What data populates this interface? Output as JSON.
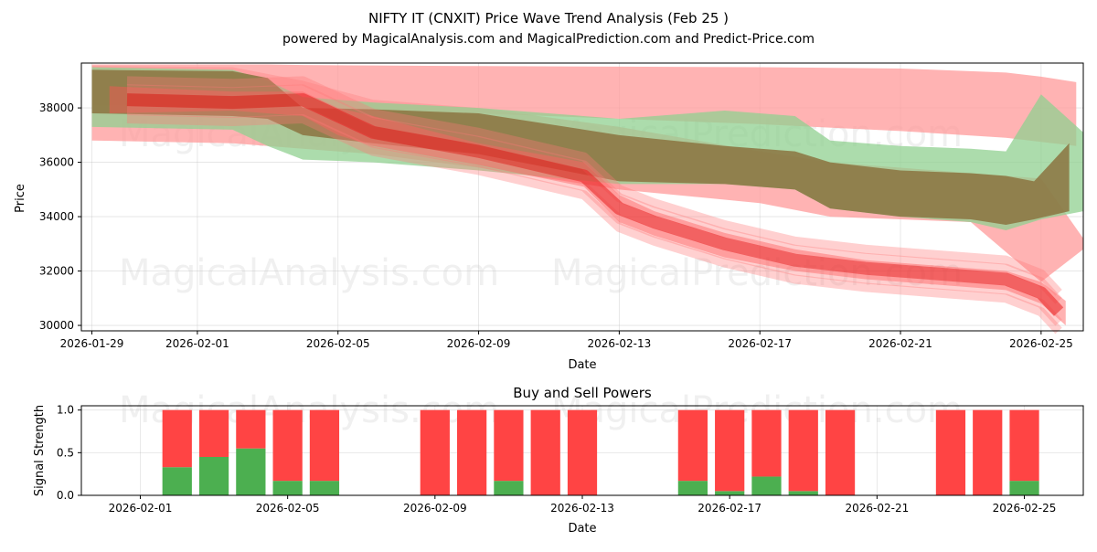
{
  "chart_data": [
    {
      "type": "area",
      "title": "NIFTY IT (CNXIT) Price Wave Trend Analysis (Feb 25 )",
      "subtitle": "powered by MagicalAnalysis.com and MagicalPrediction.com and Predict-Price.com",
      "xlabel": "Date",
      "ylabel": "Price",
      "x_ticks": [
        "2026-01-29",
        "2026-02-01",
        "2026-02-05",
        "2026-02-09",
        "2026-02-13",
        "2026-02-17",
        "2026-02-21",
        "2026-02-25"
      ],
      "x_tick_days": [
        -3,
        0,
        4,
        8,
        12,
        16,
        20,
        24
      ],
      "xlim": [
        -3.3,
        25.2
      ],
      "y_ticks": [
        30000,
        32000,
        34000,
        36000,
        38000
      ],
      "y_tick_labels": [
        "30000",
        "32000",
        "34000",
        "36000",
        "38000"
      ],
      "ylim": [
        29800,
        39650
      ],
      "watermarks": [
        "MagicalAnalysis.com",
        "MagicalPrediction.com",
        "MagicalAnalysis.com",
        "MagicalPrediction.com"
      ],
      "series": [
        {
          "name": "band-red-upper",
          "color": "#ff9999",
          "x": [
            -3,
            1,
            2,
            3,
            5,
            8,
            12,
            16,
            20,
            23,
            24,
            25
          ],
          "upper": [
            39600,
            39600,
            39600,
            39580,
            39560,
            39540,
            39520,
            39500,
            39450,
            39300,
            39150,
            38950
          ],
          "lower": [
            38100,
            38000,
            37980,
            37950,
            37900,
            37800,
            37600,
            37400,
            37150,
            36900,
            36750,
            36600
          ]
        },
        {
          "name": "band-red-lower",
          "color": "#ff9999",
          "x": [
            -3,
            1,
            3,
            5,
            8,
            12,
            16,
            18,
            20,
            22,
            24,
            25.2
          ],
          "upper": [
            39550,
            39500,
            39000,
            38300,
            38000,
            37300,
            36400,
            36000,
            35800,
            35600,
            35400,
            33200
          ],
          "lower": [
            36800,
            36700,
            36500,
            36300,
            35800,
            35000,
            34500,
            34000,
            33900,
            33800,
            31600,
            32800
          ]
        },
        {
          "name": "band-green",
          "color": "#90d090",
          "x": [
            -3,
            1,
            2,
            3,
            5,
            8,
            12,
            15,
            17,
            18,
            20,
            22,
            23,
            24,
            25.2
          ],
          "upper": [
            39500,
            39400,
            39000,
            38400,
            38200,
            38000,
            37600,
            37900,
            37700,
            36800,
            36600,
            36500,
            36400,
            38500,
            37100
          ],
          "lower": [
            37300,
            37200,
            36600,
            36100,
            36000,
            35700,
            35200,
            35200,
            35000,
            34300,
            34000,
            33800,
            33500,
            33900,
            34200
          ]
        },
        {
          "name": "band-olive",
          "color": "#8b7340",
          "x": [
            -3,
            1,
            2,
            3,
            5,
            8,
            12,
            15,
            17,
            18,
            20,
            22,
            23,
            23.8,
            24.8
          ],
          "upper": [
            39400,
            39350,
            39100,
            38000,
            37950,
            37800,
            37000,
            36600,
            36400,
            36000,
            35700,
            35600,
            35500,
            35300,
            36700
          ],
          "lower": [
            37800,
            37700,
            37600,
            37000,
            36700,
            36300,
            35300,
            35200,
            35000,
            34300,
            34000,
            33900,
            33700,
            33900,
            34200
          ]
        },
        {
          "name": "band-red-wave",
          "color": "#ff5555",
          "x": [
            -2.5,
            1,
            3,
            4,
            5,
            8,
            11,
            12,
            13,
            15,
            17,
            19,
            21,
            23,
            24,
            24.7
          ],
          "upper": [
            38800,
            38600,
            38600,
            38000,
            37700,
            36700,
            36000,
            34800,
            34200,
            33400,
            32800,
            32400,
            32200,
            32000,
            31600,
            30900
          ],
          "lower": [
            37800,
            37900,
            37700,
            37000,
            36600,
            35900,
            35100,
            33800,
            33300,
            32500,
            32000,
            31700,
            31500,
            31300,
            30800,
            30000
          ]
        }
      ],
      "trend_line": {
        "name": "price-trend",
        "color": "#e82020",
        "x": [
          -2,
          1,
          3,
          4,
          5,
          8,
          11,
          12,
          13,
          15,
          17,
          19,
          21,
          23,
          24,
          24.5
        ],
        "y": [
          38300,
          38200,
          38300,
          37700,
          37100,
          36400,
          35500,
          34300,
          33800,
          33000,
          32400,
          32100,
          31900,
          31700,
          31200,
          30500
        ]
      }
    },
    {
      "type": "bar",
      "title": "Buy and Sell Powers",
      "xlabel": "Date",
      "ylabel": "Signal Strength",
      "x_ticks": [
        "2026-02-01",
        "2026-02-05",
        "2026-02-09",
        "2026-02-13",
        "2026-02-17",
        "2026-02-21",
        "2026-02-25"
      ],
      "x_tick_days": [
        0,
        4,
        8,
        12,
        16,
        20,
        24
      ],
      "xlim": [
        -1.6,
        25.6
      ],
      "y_ticks": [
        0.0,
        0.5,
        1.0
      ],
      "y_tick_labels": [
        "0.0",
        "0.5",
        "1.0"
      ],
      "ylim": [
        0,
        1.05
      ],
      "buy_color": "#4caf50",
      "sell_color": "#ff4444",
      "days": [
        1,
        2,
        3,
        4,
        5,
        8,
        9,
        10,
        11,
        12,
        15,
        16,
        17,
        18,
        19,
        22,
        23,
        24
      ],
      "buy": [
        0.33,
        0.45,
        0.55,
        0.17,
        0.17,
        0.0,
        0.0,
        0.17,
        0.0,
        0.0,
        0.17,
        0.05,
        0.22,
        0.05,
        0.0,
        0.0,
        0.0,
        0.17
      ],
      "sell": [
        0.67,
        0.55,
        0.45,
        0.83,
        0.83,
        1.0,
        1.0,
        0.83,
        1.0,
        1.0,
        0.83,
        0.95,
        0.78,
        0.95,
        1.0,
        1.0,
        1.0,
        0.83
      ],
      "watermarks": [
        "MagicalAnalysis.com",
        "MagicalPrediction.com"
      ]
    }
  ]
}
